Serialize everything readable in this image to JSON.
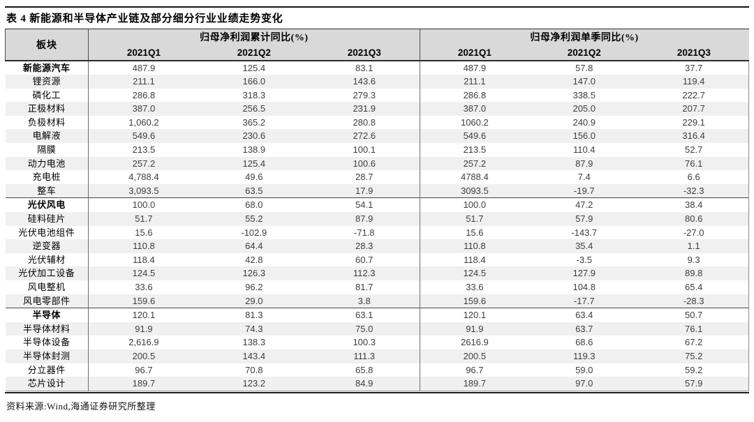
{
  "title": "表 4 新能源和半导体产业链及部分细分行业业绩走势变化",
  "source_note": "资料来源:Wind,海通证券研究所整理",
  "colors": {
    "header_bg": "#D9D9D9",
    "stripe_bg": "#F0F0F0",
    "rule_dark": "#1c1c1c",
    "grid_line": "#6e6e6e",
    "label_text": "#000000",
    "number_text": "#3d3d3d"
  },
  "table": {
    "sector_header": "板块",
    "group_headers": {
      "cumulative": "归母净利润累计同比(%)",
      "quarterly": "归母净利润单季同比(%)"
    },
    "quarter_headers": [
      "2021Q1",
      "2021Q2",
      "2021Q3"
    ],
    "rows": [
      {
        "label": "新能源汽车",
        "bold": true,
        "cum": [
          "487.9",
          "125.4",
          "83.1"
        ],
        "single": [
          "487.9",
          "57.8",
          "37.7"
        ]
      },
      {
        "label": "锂资源",
        "bold": false,
        "cum": [
          "211.1",
          "166.0",
          "143.6"
        ],
        "single": [
          "211.1",
          "147.0",
          "119.4"
        ]
      },
      {
        "label": "磷化工",
        "bold": false,
        "cum": [
          "286.8",
          "318.3",
          "279.3"
        ],
        "single": [
          "286.8",
          "338.5",
          "222.7"
        ]
      },
      {
        "label": "正极材料",
        "bold": false,
        "cum": [
          "387.0",
          "256.5",
          "231.9"
        ],
        "single": [
          "387.0",
          "205.0",
          "207.7"
        ]
      },
      {
        "label": "负极材料",
        "bold": false,
        "cum": [
          "1,060.2",
          "365.2",
          "280.8"
        ],
        "single": [
          "1060.2",
          "240.9",
          "229.1"
        ]
      },
      {
        "label": "电解液",
        "bold": false,
        "cum": [
          "549.6",
          "230.6",
          "272.6"
        ],
        "single": [
          "549.6",
          "156.0",
          "316.4"
        ]
      },
      {
        "label": "隔膜",
        "bold": false,
        "cum": [
          "213.5",
          "138.9",
          "100.1"
        ],
        "single": [
          "213.5",
          "110.4",
          "52.7"
        ]
      },
      {
        "label": "动力电池",
        "bold": false,
        "cum": [
          "257.2",
          "125.4",
          "100.6"
        ],
        "single": [
          "257.2",
          "87.9",
          "76.1"
        ]
      },
      {
        "label": "充电桩",
        "bold": false,
        "cum": [
          "4,788.4",
          "49.6",
          "28.7"
        ],
        "single": [
          "4788.4",
          "7.4",
          "6.6"
        ]
      },
      {
        "label": "整车",
        "bold": false,
        "cum": [
          "3,093.5",
          "63.5",
          "17.9"
        ],
        "single": [
          "3093.5",
          "-19.7",
          "-32.3"
        ]
      },
      {
        "label": "光伏风电",
        "bold": true,
        "cum": [
          "100.0",
          "68.0",
          "54.1"
        ],
        "single": [
          "100.0",
          "47.2",
          "38.4"
        ]
      },
      {
        "label": "硅料硅片",
        "bold": false,
        "cum": [
          "51.7",
          "55.2",
          "87.9"
        ],
        "single": [
          "51.7",
          "57.9",
          "80.6"
        ]
      },
      {
        "label": "光伏电池组件",
        "bold": false,
        "cum": [
          "15.6",
          "-102.9",
          "-71.8"
        ],
        "single": [
          "15.6",
          "-143.7",
          "-27.0"
        ]
      },
      {
        "label": "逆变器",
        "bold": false,
        "cum": [
          "110.8",
          "64.4",
          "28.3"
        ],
        "single": [
          "110.8",
          "35.4",
          "1.1"
        ]
      },
      {
        "label": "光伏辅材",
        "bold": false,
        "cum": [
          "118.4",
          "42.8",
          "60.7"
        ],
        "single": [
          "118.4",
          "-3.5",
          "9.3"
        ]
      },
      {
        "label": "光伏加工设备",
        "bold": false,
        "cum": [
          "124.5",
          "126.3",
          "112.3"
        ],
        "single": [
          "124.5",
          "127.9",
          "89.8"
        ]
      },
      {
        "label": "风电整机",
        "bold": false,
        "cum": [
          "33.6",
          "96.2",
          "81.7"
        ],
        "single": [
          "33.6",
          "104.8",
          "65.4"
        ]
      },
      {
        "label": "风电零部件",
        "bold": false,
        "cum": [
          "159.6",
          "29.0",
          "3.8"
        ],
        "single": [
          "159.6",
          "-17.7",
          "-28.3"
        ]
      },
      {
        "label": "半导体",
        "bold": true,
        "cum": [
          "120.1",
          "81.3",
          "63.1"
        ],
        "single": [
          "120.1",
          "63.4",
          "50.7"
        ]
      },
      {
        "label": "半导体材料",
        "bold": false,
        "cum": [
          "91.9",
          "74.3",
          "75.0"
        ],
        "single": [
          "91.9",
          "63.7",
          "76.1"
        ]
      },
      {
        "label": "半导体设备",
        "bold": false,
        "cum": [
          "2,616.9",
          "138.3",
          "100.3"
        ],
        "single": [
          "2616.9",
          "68.6",
          "67.2"
        ]
      },
      {
        "label": "半导体封测",
        "bold": false,
        "cum": [
          "200.5",
          "143.4",
          "111.3"
        ],
        "single": [
          "200.5",
          "119.3",
          "75.2"
        ]
      },
      {
        "label": "分立器件",
        "bold": false,
        "cum": [
          "96.7",
          "70.8",
          "65.8"
        ],
        "single": [
          "96.7",
          "59.0",
          "59.2"
        ]
      },
      {
        "label": "芯片设计",
        "bold": false,
        "cum": [
          "189.7",
          "123.2",
          "84.9"
        ],
        "single": [
          "189.7",
          "97.0",
          "57.9"
        ]
      }
    ]
  }
}
